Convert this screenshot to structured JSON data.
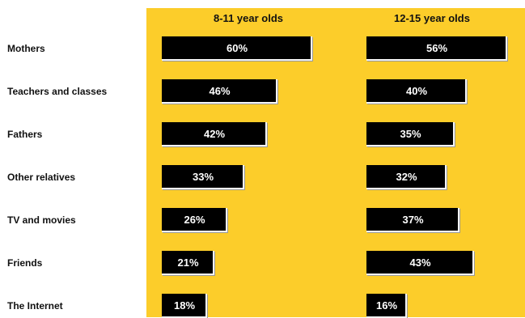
{
  "colors": {
    "panel": "#fccd2a",
    "bar": "#000000",
    "bar_edge": "#f5f5f5",
    "text": "#111111",
    "value_text": "#ffffff"
  },
  "chart_data": {
    "type": "bar",
    "orientation": "horizontal",
    "categories": [
      "Mothers",
      "Teachers and classes",
      "Fathers",
      "Other relatives",
      "TV and movies",
      "Friends",
      "The Internet"
    ],
    "series": [
      {
        "name": "8-11 year olds",
        "values": [
          60,
          46,
          42,
          33,
          26,
          21,
          18
        ],
        "labels": [
          "60%",
          "46%",
          "42%",
          "33%",
          "26%",
          "21%",
          "18%"
        ]
      },
      {
        "name": "12-15 year olds",
        "values": [
          56,
          40,
          35,
          32,
          37,
          43,
          16
        ],
        "labels": [
          "56%",
          "40%",
          "35%",
          "32%",
          "37%",
          "43%",
          "16%"
        ]
      }
    ],
    "xlim": [
      0,
      100
    ],
    "title": "",
    "xlabel": "",
    "ylabel": "",
    "grid": false,
    "legend": "none"
  }
}
